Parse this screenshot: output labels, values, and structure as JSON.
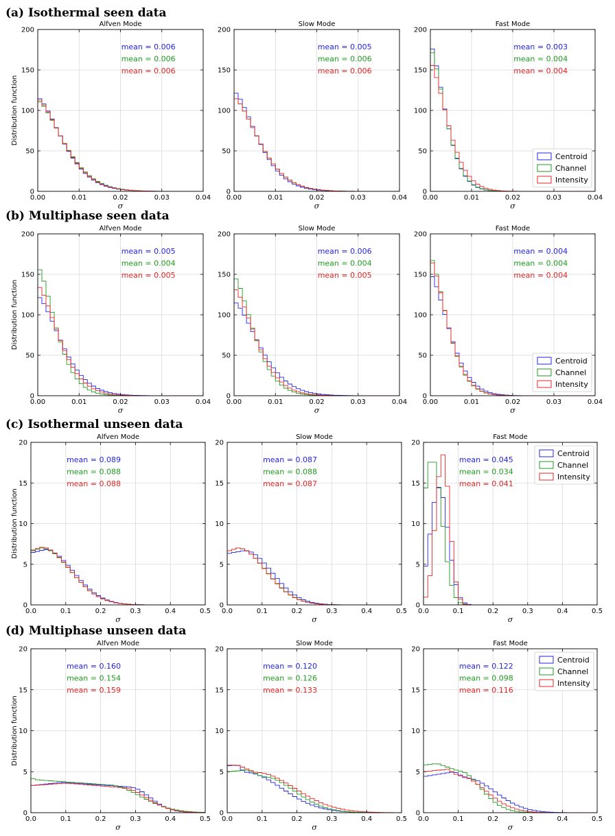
{
  "figure": {
    "xlabel": "σ",
    "ylabel": "Distribution function",
    "legend_labels": [
      "Centroid",
      "Channel",
      "Intensity"
    ],
    "colors": {
      "Centroid": "#2323e8",
      "Channel": "#1f9a1f",
      "Intensity": "#e82323"
    }
  },
  "chart_data": [
    {
      "type": "histogram-step",
      "row_title": "(a) Isothermal seen data",
      "xlim": [
        0,
        0.04
      ],
      "ylim": [
        0,
        200
      ],
      "xticks": [
        0,
        0.01,
        0.02,
        0.03,
        0.04
      ],
      "xtick_labels": [
        "0.00",
        "0.01",
        "0.02",
        "0.03",
        "0.04"
      ],
      "yticks": [
        0,
        50,
        100,
        150,
        200
      ],
      "ytick_labels": [
        "0",
        "50",
        "100",
        "150",
        "200"
      ],
      "legend_panel": 2,
      "legend_position": "lower-right",
      "panels": [
        {
          "title": "Alfven Mode",
          "shape": "decay",
          "means": [
            "mean = 0.006",
            "mean = 0.006",
            "mean = 0.006"
          ],
          "series": [
            {
              "name": "Centroid",
              "peak": 116,
              "decay": 0.0083
            },
            {
              "name": "Channel",
              "peak": 112,
              "decay": 0.0087
            },
            {
              "name": "Intensity",
              "peak": 114,
              "decay": 0.0085
            }
          ]
        },
        {
          "title": "Slow Mode",
          "shape": "decay",
          "means": [
            "mean = 0.005",
            "mean = 0.006",
            "mean = 0.006"
          ],
          "series": [
            {
              "name": "Centroid",
              "peak": 123,
              "decay": 0.0078
            },
            {
              "name": "Channel",
              "peak": 116,
              "decay": 0.0083
            },
            {
              "name": "Intensity",
              "peak": 116,
              "decay": 0.0083
            }
          ]
        },
        {
          "title": "Fast Mode",
          "shape": "decay",
          "means": [
            "mean = 0.003",
            "mean = 0.004",
            "mean = 0.004"
          ],
          "series": [
            {
              "name": "Centroid",
              "peak": 181,
              "decay": 0.005
            },
            {
              "name": "Channel",
              "peak": 176,
              "decay": 0.0051
            },
            {
              "name": "Intensity",
              "peak": 159,
              "decay": 0.0058
            }
          ]
        }
      ]
    },
    {
      "type": "histogram-step",
      "row_title": "(b) Multiphase seen data",
      "xlim": [
        0,
        0.04
      ],
      "ylim": [
        0,
        200
      ],
      "xticks": [
        0,
        0.01,
        0.02,
        0.03,
        0.04
      ],
      "xtick_labels": [
        "0.00",
        "0.01",
        "0.02",
        "0.03",
        "0.04"
      ],
      "yticks": [
        0,
        50,
        100,
        150,
        200
      ],
      "ytick_labels": [
        "0",
        "50",
        "100",
        "150",
        "200"
      ],
      "legend_panel": 2,
      "legend_position": "lower-right",
      "panels": [
        {
          "title": "Alfven Mode",
          "shape": "decay",
          "means": [
            "mean = 0.005",
            "mean = 0.004",
            "mean = 0.005"
          ],
          "series": [
            {
              "name": "Centroid",
              "peak": 123,
              "decay": 0.0078
            },
            {
              "name": "Channel",
              "peak": 159,
              "decay": 0.006
            },
            {
              "name": "Intensity",
              "peak": 136,
              "decay": 0.007
            }
          ]
        },
        {
          "title": "Slow Mode",
          "shape": "decay",
          "means": [
            "mean = 0.006",
            "mean = 0.004",
            "mean = 0.005"
          ],
          "series": [
            {
              "name": "Centroid",
              "peak": 116,
              "decay": 0.0084
            },
            {
              "name": "Channel",
              "peak": 147,
              "decay": 0.0065
            },
            {
              "name": "Intensity",
              "peak": 133,
              "decay": 0.0072
            }
          ]
        },
        {
          "title": "Fast Mode",
          "shape": "decay",
          "means": [
            "mean = 0.004",
            "mean = 0.004",
            "mean = 0.004"
          ],
          "series": [
            {
              "name": "Centroid",
              "peak": 150,
              "decay": 0.0063
            },
            {
              "name": "Channel",
              "peak": 171,
              "decay": 0.0056
            },
            {
              "name": "Intensity",
              "peak": 168,
              "decay": 0.0057
            }
          ]
        }
      ]
    },
    {
      "type": "histogram-step",
      "row_title": "(c) Isothermal unseen data",
      "xlim": [
        0,
        0.5
      ],
      "ylim": [
        0,
        20
      ],
      "xticks": [
        0,
        0.1,
        0.2,
        0.3,
        0.4,
        0.5
      ],
      "xtick_labels": [
        "0.0",
        "0.1",
        "0.2",
        "0.3",
        "0.4",
        "0.5"
      ],
      "yticks": [
        0,
        5,
        10,
        15,
        20
      ],
      "ytick_labels": [
        "0",
        "5",
        "10",
        "15",
        "20"
      ],
      "legend_panel": 2,
      "legend_position": "upper-right",
      "panels": [
        {
          "title": "Alfven Mode",
          "shape": "halfgauss",
          "means": [
            "mean = 0.089",
            "mean = 0.088",
            "mean = 0.088"
          ],
          "series": [
            {
              "name": "Centroid",
              "peak": 6.8,
              "center": 0.04,
              "width": 0.115
            },
            {
              "name": "Channel",
              "peak": 7.0,
              "center": 0.03,
              "width": 0.118
            },
            {
              "name": "Intensity",
              "peak": 7.1,
              "center": 0.03,
              "width": 0.117
            }
          ]
        },
        {
          "title": "Slow Mode",
          "shape": "halfgauss",
          "means": [
            "mean = 0.087",
            "mean = 0.088",
            "mean = 0.087"
          ],
          "series": [
            {
              "name": "Centroid",
              "peak": 6.7,
              "center": 0.05,
              "width": 0.11
            },
            {
              "name": "Channel",
              "peak": 7.0,
              "center": 0.03,
              "width": 0.115
            },
            {
              "name": "Intensity",
              "peak": 7.0,
              "center": 0.03,
              "width": 0.114
            }
          ]
        },
        {
          "title": "Fast Mode",
          "shape": "gauss",
          "means": [
            "mean = 0.045",
            "mean = 0.034",
            "mean = 0.041"
          ],
          "series": [
            {
              "name": "Centroid",
              "peak": 14.5,
              "center": 0.045,
              "width": 0.026
            },
            {
              "name": "Channel",
              "peak": 18.0,
              "center": 0.025,
              "width": 0.028
            },
            {
              "name": "Intensity",
              "peak": 18.5,
              "center": 0.055,
              "width": 0.02
            }
          ]
        }
      ]
    },
    {
      "type": "histogram-step",
      "row_title": "(d) Multiphase unseen data",
      "xlim": [
        0,
        0.5
      ],
      "ylim": [
        0,
        20
      ],
      "xticks": [
        0,
        0.1,
        0.2,
        0.3,
        0.4,
        0.5
      ],
      "xtick_labels": [
        "0.0",
        "0.1",
        "0.2",
        "0.3",
        "0.4",
        "0.5"
      ],
      "yticks": [
        0,
        5,
        10,
        15,
        20
      ],
      "ytick_labels": [
        "0",
        "5",
        "10",
        "15",
        "20"
      ],
      "legend_panel": 2,
      "legend_position": "upper-right",
      "panels": [
        {
          "title": "Alfven Mode",
          "shape": "plateau",
          "means": [
            "mean = 0.160",
            "mean = 0.154",
            "mean = 0.159"
          ],
          "series": [
            {
              "name": "Centroid",
              "start": 3.3,
              "peak": 3.7,
              "center": 0.09,
              "knee": 0.28,
              "fall": 0.085
            },
            {
              "name": "Channel",
              "start": 4.2,
              "peak": 4.0,
              "center": 0.02,
              "knee": 0.22,
              "fall": 0.13
            },
            {
              "name": "Intensity",
              "start": 3.3,
              "peak": 3.6,
              "center": 0.1,
              "knee": 0.26,
              "fall": 0.1
            }
          ]
        },
        {
          "title": "Slow Mode",
          "shape": "plateau",
          "means": [
            "mean = 0.120",
            "mean = 0.126",
            "mean = 0.133"
          ],
          "series": [
            {
              "name": "Centroid",
              "start": 5.7,
              "peak": 5.8,
              "center": 0.03,
              "knee": 0.05,
              "fall": 0.15
            },
            {
              "name": "Channel",
              "start": 5.0,
              "peak": 5.2,
              "center": 0.06,
              "knee": 0.1,
              "fall": 0.13
            },
            {
              "name": "Intensity",
              "start": 5.8,
              "peak": 5.8,
              "center": 0.03,
              "knee": 0.08,
              "fall": 0.16
            }
          ]
        },
        {
          "title": "Fast Mode",
          "shape": "plateau",
          "means": [
            "mean = 0.122",
            "mean = 0.098",
            "mean = 0.116"
          ],
          "series": [
            {
              "name": "Centroid",
              "start": 4.4,
              "peak": 5.0,
              "center": 0.09,
              "knee": 0.12,
              "fall": 0.12
            },
            {
              "name": "Channel",
              "start": 5.8,
              "peak": 6.0,
              "center": 0.04,
              "knee": 0.1,
              "fall": 0.09
            },
            {
              "name": "Intensity",
              "start": 5.0,
              "peak": 5.3,
              "center": 0.07,
              "knee": 0.1,
              "fall": 0.11
            }
          ]
        }
      ]
    }
  ]
}
